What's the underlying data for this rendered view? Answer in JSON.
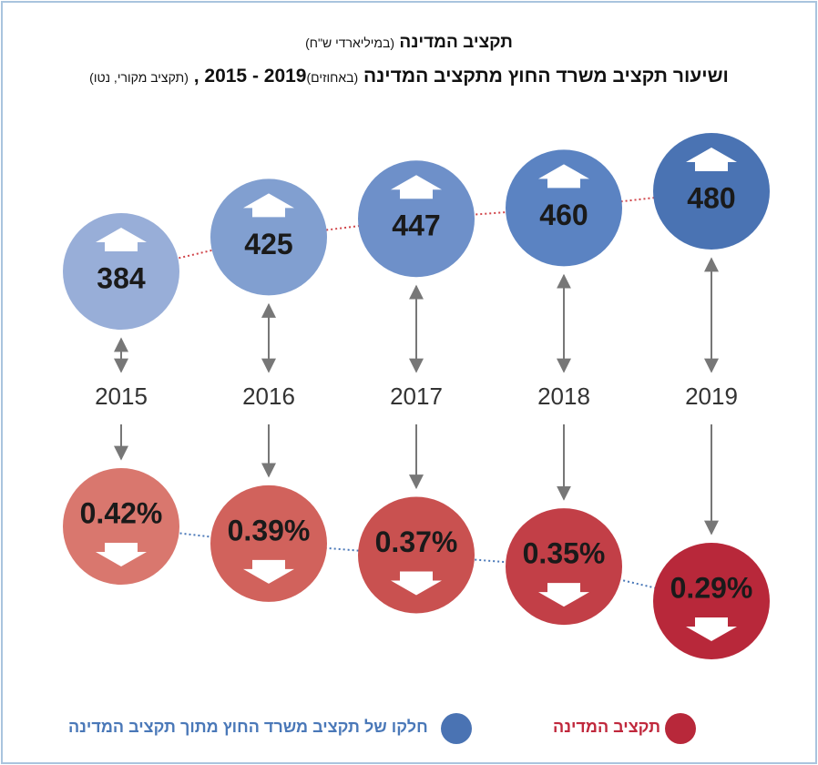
{
  "chart_data": {
    "type": "circles",
    "title": {
      "main": "תקציב המדינה",
      "unit": "(במיליארדי ש\"ח)"
    },
    "subtitle": {
      "main": "ושיעור תקציב משרד החוץ מתקציב המדינה",
      "unit": "(באחוזים)",
      "years": ", 2015 - 2019",
      "note": "(תקציב מקורי, נטו)"
    },
    "categories": [
      "2015",
      "2016",
      "2017",
      "2018",
      "2019"
    ],
    "series": [
      {
        "name": "תקציב המדינה",
        "values": [
          384,
          425,
          447,
          460,
          480
        ],
        "colors": [
          "#98aed8",
          "#819fd0",
          "#6e90c9",
          "#5b83c2",
          "#4a73b3"
        ],
        "line_color": "#d0454a"
      },
      {
        "name": "חלקו של תקציב משרד החוץ מתוך תקציב המדינה",
        "values": [
          0.42,
          0.39,
          0.37,
          0.35,
          0.29
        ],
        "value_labels": [
          "0.42%",
          "0.39%",
          "0.37%",
          "0.35%",
          "0.29%"
        ],
        "colors": [
          "#d9776e",
          "#d1625c",
          "#c95150",
          "#c23f47",
          "#b8283a"
        ],
        "line_color": "#4a78b8"
      }
    ],
    "legend": [
      {
        "text": "חלקו של תקציב משרד החוץ מתוך תקציב המדינה",
        "color": "#4a78b8"
      },
      {
        "text": "תקציב המדינה",
        "color": "#c0283c"
      }
    ]
  }
}
